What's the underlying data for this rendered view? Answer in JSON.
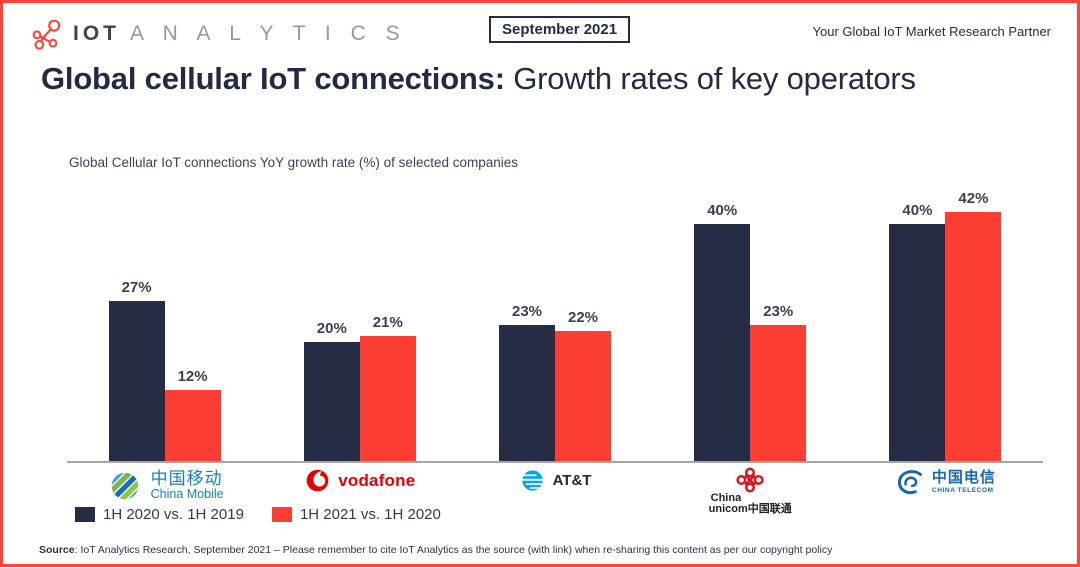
{
  "header": {
    "logo_bold": "IOT",
    "logo_light": "A N A L Y T I C S",
    "date_badge": "September 2021",
    "tagline": "Your Global IoT Market Research Partner"
  },
  "title": {
    "bold": "Global cellular IoT connections:",
    "regular": " Growth rates of key operators"
  },
  "chart_data": {
    "type": "bar",
    "title": "Global Cellular IoT connections YoY growth rate (%) of selected companies",
    "categories": [
      "China Mobile",
      "Vodafone",
      "AT&T",
      "China Unicom",
      "China Telecom"
    ],
    "series": [
      {
        "name": "1H 2020 vs. 1H 2019",
        "color": "#262c44",
        "values": [
          27,
          20,
          23,
          40,
          40
        ]
      },
      {
        "name": "1H 2021 vs. 1H 2020",
        "color": "#fb3e31",
        "values": [
          12,
          21,
          22,
          23,
          42
        ]
      }
    ],
    "value_suffix": "%",
    "ylim": [
      0,
      45
    ],
    "grid": false,
    "data_labels": true,
    "legend_position": "bottom-left"
  },
  "companies": [
    {
      "name": "China Mobile",
      "label_cn": "中国移动",
      "label_en": "China Mobile"
    },
    {
      "name": "Vodafone",
      "label": "vodafone"
    },
    {
      "name": "AT&T",
      "label": "AT&T"
    },
    {
      "name": "China Unicom",
      "label_l1": "China",
      "label_l2": "unicom中国联通"
    },
    {
      "name": "China Telecom",
      "label_cn": "中国电信",
      "label_en": "CHINA TELECOM"
    }
  ],
  "footer": {
    "source_label": "Source",
    "source_text": ": IoT Analytics Research, September 2021 – Please remember to cite IoT Analytics as the source (with link) when re-sharing this content as per our copyright policy"
  },
  "colors": {
    "accent_border": "#f94638",
    "navy": "#262c44",
    "bar_dark": "#262c44",
    "bar_red": "#fb3e31",
    "axis_gray": "#a6a6a6",
    "logo_icon_red": "#f4473a"
  }
}
